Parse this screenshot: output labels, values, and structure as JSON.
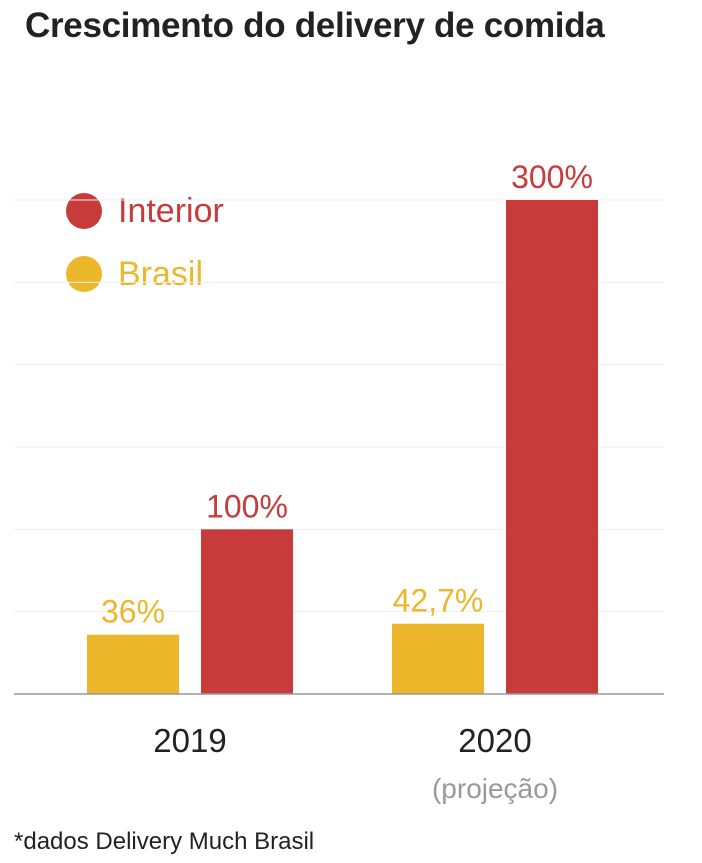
{
  "title": "Crescimento do delivery de comida",
  "footnote": "*dados Delivery Much Brasil",
  "colors": {
    "interior": "#c83b3b",
    "brasil": "#ecb72b",
    "axis": "#999999",
    "grid": "#eeeeee",
    "subtitle": "#999999"
  },
  "chart_data": {
    "type": "bar",
    "categories": [
      "2019",
      "2020"
    ],
    "category_subtitles": [
      "",
      "(projeção)"
    ],
    "series": [
      {
        "name": "Brasil",
        "values": [
          36,
          42.7
        ],
        "labels": [
          "36%",
          "42,7%"
        ],
        "color": "#ecb72b"
      },
      {
        "name": "Interior",
        "values": [
          100,
          300
        ],
        "labels": [
          "100%",
          "300%"
        ],
        "color": "#c83b3b"
      }
    ],
    "legend": [
      {
        "name": "Interior",
        "color": "#c83b3b"
      },
      {
        "name": "Brasil",
        "color": "#ecb72b"
      }
    ],
    "legend_position": "top-left",
    "ylim": [
      0,
      300
    ],
    "grid": true
  }
}
